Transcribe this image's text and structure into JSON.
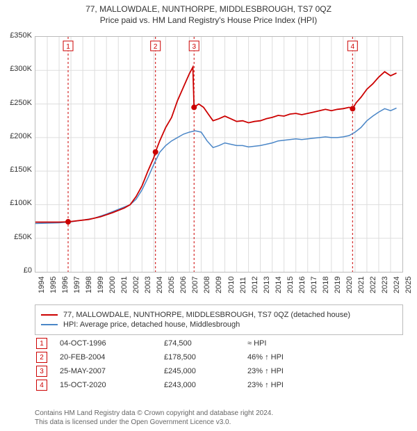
{
  "title_line1": "77, MALLOWDALE, NUNTHORPE, MIDDLESBROUGH, TS7 0QZ",
  "title_line2": "Price paid vs. HM Land Registry's House Price Index (HPI)",
  "chart": {
    "type": "line",
    "background_color": "#ffffff",
    "plot_border_color": "#bbbbbb",
    "grid_color": "#dddddd",
    "x_axis": {
      "years": [
        1994,
        1995,
        1996,
        1997,
        1998,
        1999,
        2000,
        2001,
        2002,
        2003,
        2004,
        2005,
        2006,
        2007,
        2008,
        2009,
        2010,
        2011,
        2012,
        2013,
        2014,
        2015,
        2016,
        2017,
        2018,
        2019,
        2020,
        2021,
        2022,
        2023,
        2024,
        2025
      ],
      "label_fontsize": 11,
      "label_color": "#333333",
      "label_rotation": -90
    },
    "y_axis": {
      "ticks": [
        0,
        50000,
        100000,
        150000,
        200000,
        250000,
        300000,
        350000
      ],
      "tick_labels": [
        "£0",
        "£50K",
        "£100K",
        "£150K",
        "£200K",
        "£250K",
        "£300K",
        "£350K"
      ],
      "max": 350000,
      "label_fontsize": 11,
      "label_color": "#333333"
    },
    "series": [
      {
        "name": "77, MALLOWDALE, NUNTHORPE, MIDDLESBROUGH, TS7 0QZ (detached house)",
        "color": "#cc0000",
        "line_width": 1.8,
        "points": [
          [
            1994.0,
            74000
          ],
          [
            1995.0,
            74000
          ],
          [
            1996.0,
            74000
          ],
          [
            1996.76,
            74500
          ],
          [
            1997.5,
            76000
          ],
          [
            1998.5,
            78000
          ],
          [
            1999.5,
            82000
          ],
          [
            2000.5,
            88000
          ],
          [
            2001.5,
            95000
          ],
          [
            2002.0,
            100000
          ],
          [
            2002.5,
            112000
          ],
          [
            2003.0,
            128000
          ],
          [
            2003.5,
            150000
          ],
          [
            2004.0,
            170000
          ],
          [
            2004.14,
            178500
          ],
          [
            2004.5,
            195000
          ],
          [
            2005.0,
            215000
          ],
          [
            2005.5,
            230000
          ],
          [
            2006.0,
            255000
          ],
          [
            2006.5,
            275000
          ],
          [
            2007.0,
            295000
          ],
          [
            2007.3,
            305000
          ],
          [
            2007.4,
            245000
          ],
          [
            2007.8,
            250000
          ],
          [
            2008.2,
            245000
          ],
          [
            2008.6,
            235000
          ],
          [
            2009.0,
            225000
          ],
          [
            2009.5,
            228000
          ],
          [
            2010.0,
            232000
          ],
          [
            2010.5,
            228000
          ],
          [
            2011.0,
            224000
          ],
          [
            2011.5,
            225000
          ],
          [
            2012.0,
            222000
          ],
          [
            2012.5,
            224000
          ],
          [
            2013.0,
            225000
          ],
          [
            2013.5,
            228000
          ],
          [
            2014.0,
            230000
          ],
          [
            2014.5,
            233000
          ],
          [
            2015.0,
            232000
          ],
          [
            2015.5,
            235000
          ],
          [
            2016.0,
            236000
          ],
          [
            2016.5,
            234000
          ],
          [
            2017.0,
            236000
          ],
          [
            2017.5,
            238000
          ],
          [
            2018.0,
            240000
          ],
          [
            2018.5,
            242000
          ],
          [
            2019.0,
            240000
          ],
          [
            2019.5,
            242000
          ],
          [
            2020.0,
            243000
          ],
          [
            2020.5,
            245000
          ],
          [
            2020.79,
            243000
          ],
          [
            2021.1,
            252000
          ],
          [
            2021.5,
            260000
          ],
          [
            2022.0,
            272000
          ],
          [
            2022.5,
            280000
          ],
          [
            2023.0,
            290000
          ],
          [
            2023.5,
            298000
          ],
          [
            2024.0,
            292000
          ],
          [
            2024.5,
            296000
          ]
        ]
      },
      {
        "name": "HPI: Average price, detached house, Middlesbrough",
        "color": "#4a86c7",
        "line_width": 1.5,
        "points": [
          [
            1994.0,
            72000
          ],
          [
            1995.0,
            72500
          ],
          [
            1996.0,
            73000
          ],
          [
            1997.0,
            74500
          ],
          [
            1998.0,
            77000
          ],
          [
            1999.0,
            80000
          ],
          [
            2000.0,
            86000
          ],
          [
            2001.0,
            93000
          ],
          [
            2002.0,
            100000
          ],
          [
            2002.5,
            108000
          ],
          [
            2003.0,
            122000
          ],
          [
            2003.5,
            140000
          ],
          [
            2004.0,
            160000
          ],
          [
            2004.5,
            178000
          ],
          [
            2005.0,
            188000
          ],
          [
            2005.5,
            195000
          ],
          [
            2006.0,
            200000
          ],
          [
            2006.5,
            205000
          ],
          [
            2007.0,
            208000
          ],
          [
            2007.5,
            210000
          ],
          [
            2008.0,
            208000
          ],
          [
            2008.5,
            195000
          ],
          [
            2009.0,
            185000
          ],
          [
            2009.5,
            188000
          ],
          [
            2010.0,
            192000
          ],
          [
            2010.5,
            190000
          ],
          [
            2011.0,
            188000
          ],
          [
            2011.5,
            188000
          ],
          [
            2012.0,
            186000
          ],
          [
            2012.5,
            187000
          ],
          [
            2013.0,
            188000
          ],
          [
            2013.5,
            190000
          ],
          [
            2014.0,
            192000
          ],
          [
            2014.5,
            195000
          ],
          [
            2015.0,
            196000
          ],
          [
            2015.5,
            197000
          ],
          [
            2016.0,
            198000
          ],
          [
            2016.5,
            197000
          ],
          [
            2017.0,
            198000
          ],
          [
            2017.5,
            199000
          ],
          [
            2018.0,
            200000
          ],
          [
            2018.5,
            201000
          ],
          [
            2019.0,
            200000
          ],
          [
            2019.5,
            200000
          ],
          [
            2020.0,
            201000
          ],
          [
            2020.5,
            203000
          ],
          [
            2021.0,
            208000
          ],
          [
            2021.5,
            215000
          ],
          [
            2022.0,
            225000
          ],
          [
            2022.5,
            232000
          ],
          [
            2023.0,
            238000
          ],
          [
            2023.5,
            243000
          ],
          [
            2024.0,
            240000
          ],
          [
            2024.5,
            244000
          ]
        ]
      }
    ],
    "transaction_markers": [
      {
        "n": 1,
        "x": 1996.76,
        "y": 74500
      },
      {
        "n": 2,
        "x": 2004.14,
        "y": 178500
      },
      {
        "n": 3,
        "x": 2007.4,
        "y": 245000
      },
      {
        "n": 4,
        "x": 2020.79,
        "y": 243000
      }
    ],
    "marker_dot_color": "#cc0000",
    "marker_dot_radius": 4,
    "marker_box_border": "#cc0000",
    "marker_box_text": "#cc0000",
    "marker_vline_color": "#cc0000",
    "marker_vline_dash": "3,3"
  },
  "legend": {
    "border_color": "#bbbbbb",
    "fontsize": 11
  },
  "transactions_table": {
    "rows": [
      {
        "n": "1",
        "date": "04-OCT-1996",
        "price": "£74,500",
        "rel": "≈ HPI"
      },
      {
        "n": "2",
        "date": "20-FEB-2004",
        "price": "£178,500",
        "rel": "46% ↑ HPI"
      },
      {
        "n": "3",
        "date": "25-MAY-2007",
        "price": "£245,000",
        "rel": "23% ↑ HPI"
      },
      {
        "n": "4",
        "date": "15-OCT-2020",
        "price": "£243,000",
        "rel": "23% ↑ HPI"
      }
    ]
  },
  "footer_line1": "Contains HM Land Registry data © Crown copyright and database right 2024.",
  "footer_line2": "This data is licensed under the Open Government Licence v3.0."
}
